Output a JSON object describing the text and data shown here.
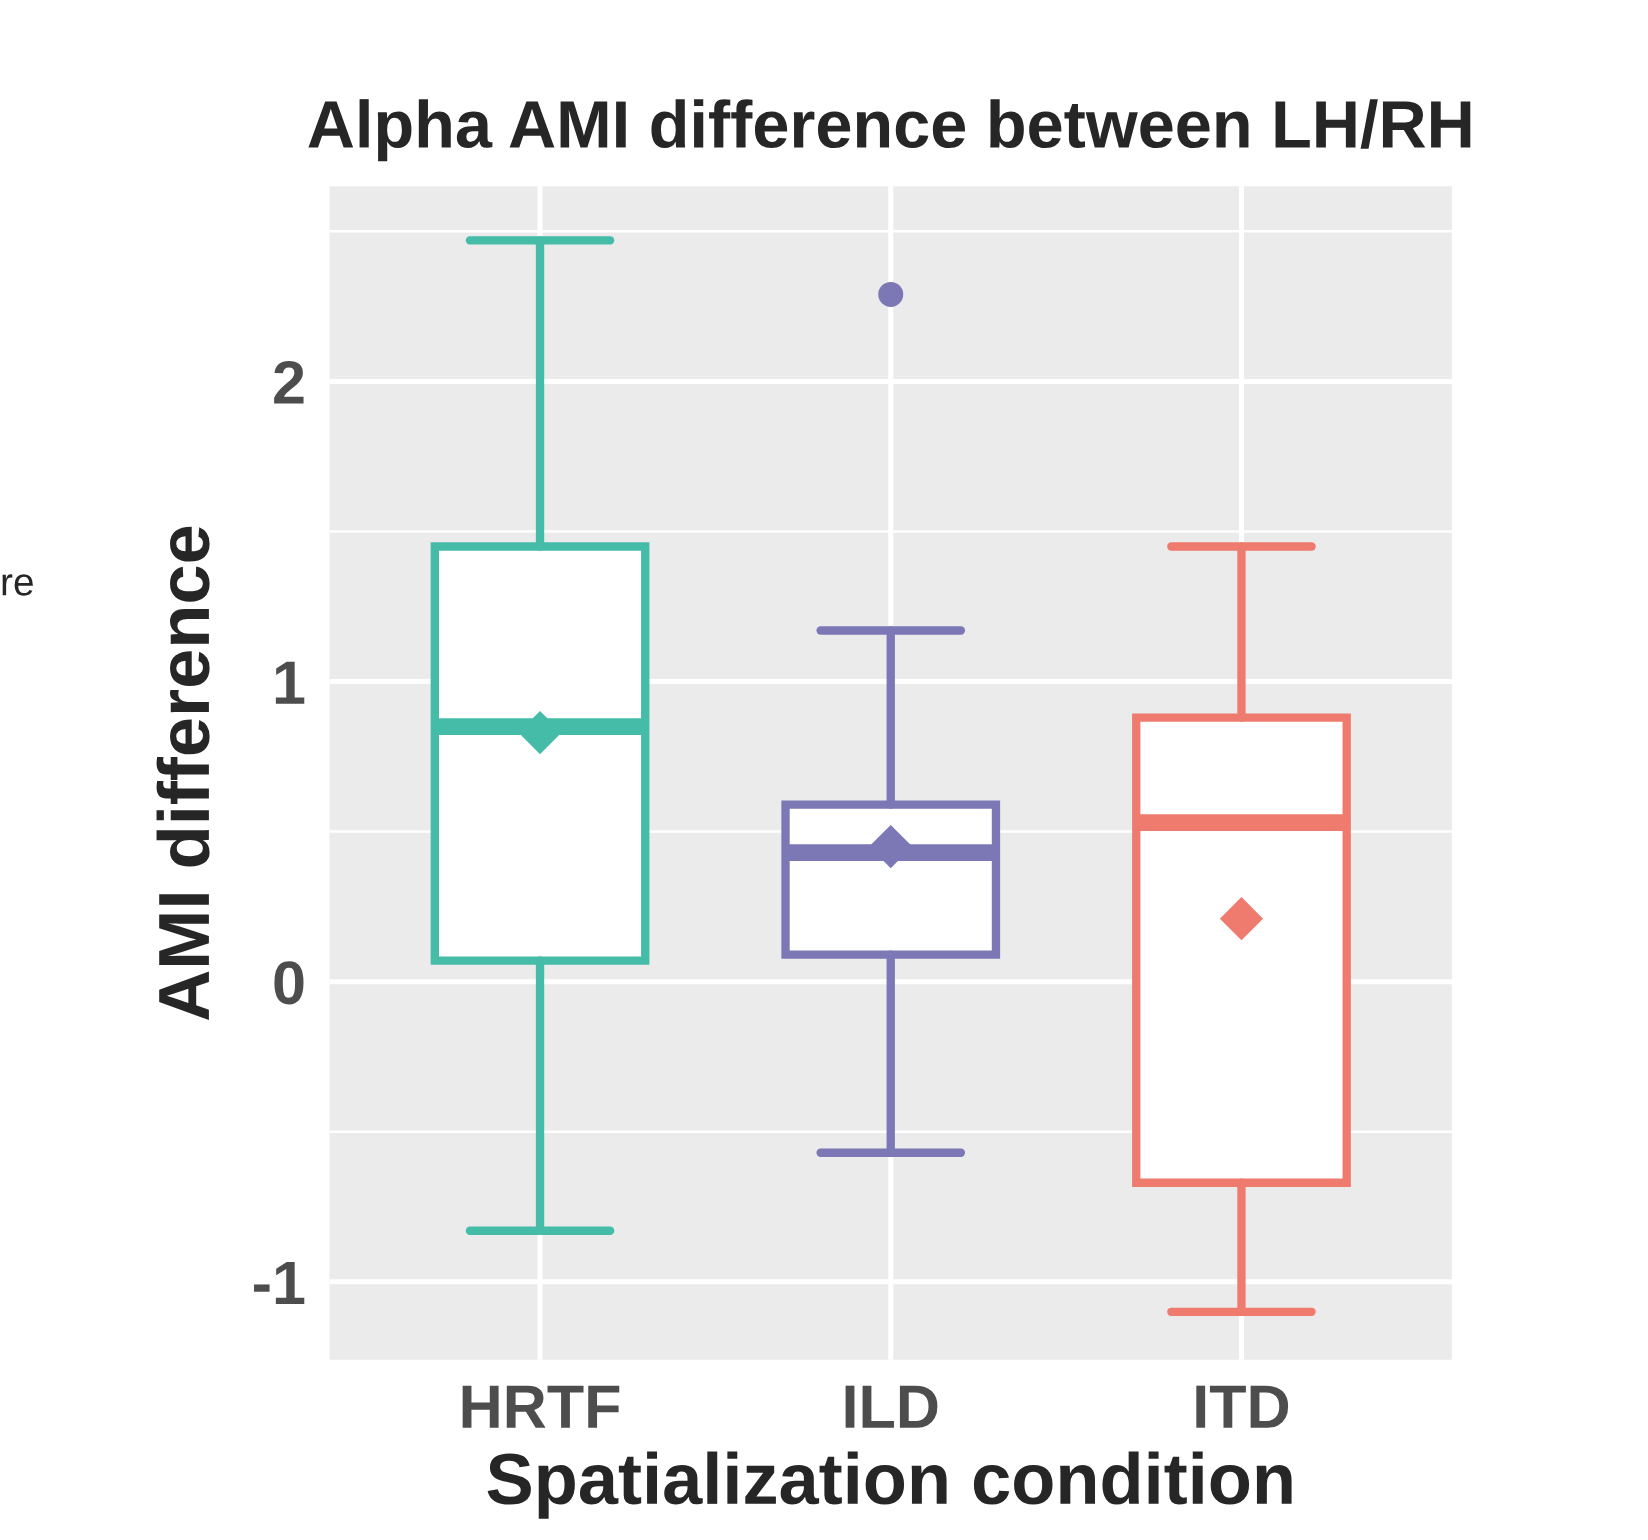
{
  "chart_data": {
    "type": "box",
    "title": "Alpha AMI difference between LH/RH",
    "xlabel": "Spatialization condition",
    "ylabel": "AMI difference",
    "categories": [
      "HRTF",
      "ILD",
      "ITD"
    ],
    "colors": [
      "#45bca8",
      "#7b78b5",
      "#ee7b6e"
    ],
    "boxes": [
      {
        "low": -0.83,
        "q1": 0.07,
        "median": 0.85,
        "q3": 1.45,
        "high": 2.47,
        "mean": 0.83
      },
      {
        "low": -0.57,
        "q1": 0.09,
        "median": 0.43,
        "q3": 0.59,
        "high": 1.17,
        "mean": 0.45,
        "outliers": [
          2.29
        ]
      },
      {
        "low": -1.1,
        "q1": -0.67,
        "median": 0.53,
        "q3": 0.88,
        "high": 1.45,
        "mean": 0.21
      }
    ],
    "ylim": [
      -1.26,
      2.65
    ],
    "yticks": [
      -1,
      0,
      1,
      2
    ],
    "grid": true,
    "annotations": [
      "re"
    ]
  }
}
